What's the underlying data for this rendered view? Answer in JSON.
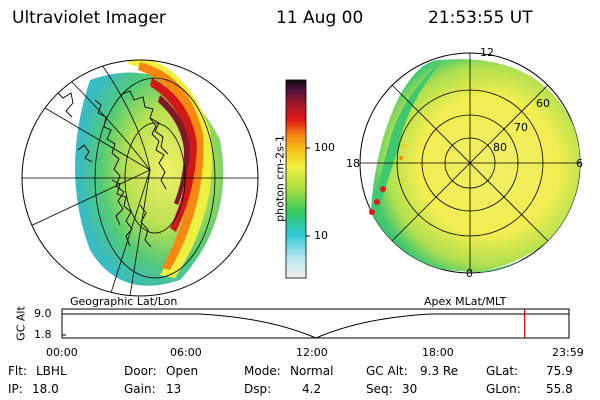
{
  "header": {
    "instrument": "Ultraviolet Imager",
    "date": "11 Aug 00",
    "time": "21:53:55 UT"
  },
  "colorbar": {
    "label": "photon cm-2s-1",
    "ticks": [
      "100",
      "10"
    ],
    "scale": "log",
    "colors": [
      "#f0f0f0",
      "#b8e8f0",
      "#30c8d8",
      "#30c860",
      "#a8e040",
      "#f0f040",
      "#f8c818",
      "#f88810",
      "#e01818",
      "#a01828",
      "#501040",
      "#101010"
    ]
  },
  "geo_panel": {
    "caption": "Geographic Lat/Lon"
  },
  "polar_panel": {
    "caption": "Apex MLat/MLT",
    "mlt_labels": {
      "top": "12",
      "left": "18",
      "right": "6",
      "bottom": "0"
    },
    "lat_labels": [
      "60",
      "70",
      "80"
    ]
  },
  "timeline": {
    "axis_label": "GC Alt",
    "y_ticks": [
      "9.0",
      "1.8"
    ],
    "x_ticks": [
      "00:00",
      "06:00",
      "12:00",
      "18:00",
      "23:59"
    ],
    "current_time_fraction": 0.9125,
    "marker_color": "#c00000"
  },
  "status": {
    "row1": [
      {
        "label": "Flt:",
        "value": "LBHL"
      },
      {
        "label": "Door:",
        "value": "Open"
      },
      {
        "label": "Mode:",
        "value": "Normal"
      },
      {
        "label": "GC Alt:",
        "value": "9.3 Re"
      },
      {
        "label": "GLat:",
        "value": "75.9"
      }
    ],
    "row2": [
      {
        "label": "IP:",
        "value": "18.0"
      },
      {
        "label": "Gain:",
        "value": "13"
      },
      {
        "label": "Dsp:",
        "value": "4.2"
      },
      {
        "label": "Seq:",
        "value": "30"
      },
      {
        "label": "GLon:",
        "value": "55.8"
      }
    ]
  }
}
